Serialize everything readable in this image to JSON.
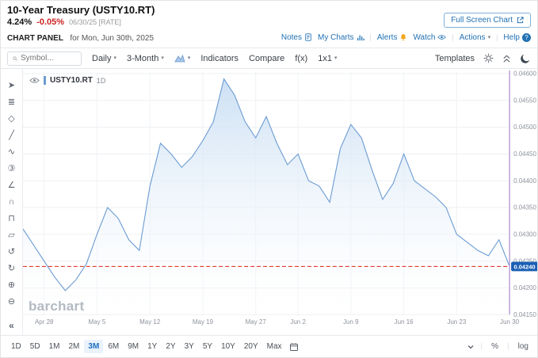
{
  "header": {
    "title": "10-Year Treasury (USTY10.RT)",
    "last": "4.24%",
    "change": "-0.05%",
    "asof": "06/30/25 [RATE]",
    "fullscreen_label": "Full Screen Chart",
    "panel_label": "CHART PANEL",
    "panel_date": "for Mon, Jun 30th, 2025",
    "help_glyph": "?",
    "links": {
      "notes": "Notes",
      "my_charts": "My Charts",
      "alerts": "Alerts",
      "watch": "Watch",
      "actions": "Actions",
      "help": "Help"
    }
  },
  "toolbar": {
    "symbol_placeholder": "Symbol...",
    "frequency": "Daily",
    "range": "3-Month",
    "indicators": "Indicators",
    "compare": "Compare",
    "fx": "f(x)",
    "grid": "1x1",
    "templates": "Templates"
  },
  "sidebar": {
    "tools": [
      "cursor-tool",
      "annotation-tool",
      "shapes-tool",
      "trendline-tool",
      "wave-tool",
      "count-tool",
      "angle-tool",
      "magnet-tool",
      "lock-tool",
      "eraser-tool",
      "undo-button",
      "redo-button",
      "zoom-in-button",
      "zoom-out-button",
      "collapse-sidebar-button"
    ]
  },
  "legend": {
    "symbol": "USTY10.RT",
    "interval": "1D"
  },
  "watermark": "barchart",
  "bottom": {
    "periods": [
      "1D",
      "5D",
      "1M",
      "2M",
      "3M",
      "6M",
      "9M",
      "1Y",
      "2Y",
      "3Y",
      "5Y",
      "10Y",
      "20Y",
      "Max"
    ],
    "active_period": "3M",
    "percent_label": "%",
    "log_label": "log"
  },
  "chart_data": {
    "type": "area",
    "title": "10-Year Treasury (USTY10.RT) daily yield, 3-month view",
    "symbol": "USTY10.RT",
    "x_labels": [
      "Apr 28",
      "May 5",
      "May 12",
      "May 19",
      "May 27",
      "Jun 2",
      "Jun 9",
      "Jun 16",
      "Jun 23",
      "Jun 30"
    ],
    "x_label_indices": [
      2,
      7,
      12,
      17,
      22,
      26,
      31,
      36,
      41,
      46
    ],
    "dates": [
      "Apr 24",
      "Apr 25",
      "Apr 28",
      "Apr 29",
      "Apr 30",
      "May 1",
      "May 2",
      "May 5",
      "May 6",
      "May 7",
      "May 8",
      "May 9",
      "May 12",
      "May 13",
      "May 14",
      "May 15",
      "May 16",
      "May 19",
      "May 20",
      "May 21",
      "May 22",
      "May 23",
      "May 27",
      "May 28",
      "May 29",
      "May 30",
      "Jun 2",
      "Jun 3",
      "Jun 4",
      "Jun 5",
      "Jun 6",
      "Jun 9",
      "Jun 10",
      "Jun 11",
      "Jun 12",
      "Jun 13",
      "Jun 16",
      "Jun 17",
      "Jun 18",
      "Jun 19",
      "Jun 20",
      "Jun 23",
      "Jun 24",
      "Jun 25",
      "Jun 26",
      "Jun 27",
      "Jun 30"
    ],
    "values": [
      0.0431,
      0.0428,
      0.0425,
      0.0422,
      0.04195,
      0.04215,
      0.04245,
      0.043,
      0.0435,
      0.0433,
      0.0429,
      0.0427,
      0.0439,
      0.0447,
      0.0445,
      0.04425,
      0.04445,
      0.04475,
      0.0451,
      0.0459,
      0.0456,
      0.0451,
      0.0448,
      0.0452,
      0.0447,
      0.0443,
      0.0445,
      0.044,
      0.0439,
      0.0436,
      0.0446,
      0.04505,
      0.0448,
      0.0442,
      0.04365,
      0.04395,
      0.0445,
      0.044,
      0.04385,
      0.0437,
      0.0435,
      0.043,
      0.04285,
      0.0427,
      0.0426,
      0.0429,
      0.0424
    ],
    "ylim": [
      0.0415,
      0.046
    ],
    "y_tick_step": 0.0005,
    "last_price": 0.0424,
    "last_price_label": "0.04240",
    "grid": true,
    "legend_position": "top-left",
    "line_color": "#6b9bd2",
    "fill_top_color": "#c9def3",
    "last_line_color": "#e23a2e",
    "badge_color": "#1a5fb4",
    "axis_line_color": "#b79ad6",
    "xlabel": "",
    "ylabel": ""
  }
}
